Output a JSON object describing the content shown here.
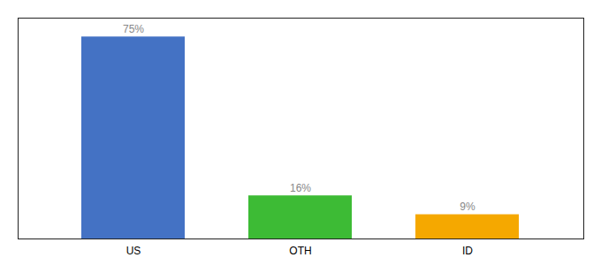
{
  "chart_data": {
    "type": "bar",
    "categories": [
      "US",
      "OTH",
      "ID"
    ],
    "values": [
      75,
      16,
      9
    ],
    "value_labels": [
      "75%",
      "16%",
      "9%"
    ],
    "colors": [
      "#4472c4",
      "#3dbb35",
      "#f5a800"
    ],
    "ylim": [
      0,
      82
    ],
    "data_labels": true,
    "tick_labels": "x"
  }
}
